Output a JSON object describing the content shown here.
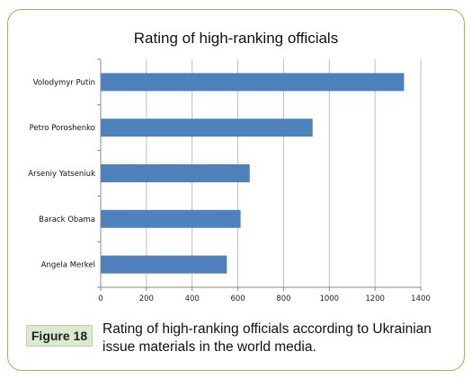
{
  "chart_data": {
    "type": "bar",
    "orientation": "horizontal",
    "title": "Rating of high-ranking officials",
    "categories": [
      "Volodymyr Putin",
      "Petro Poroshenko",
      "Arseniy Yatseniuk",
      "Barack Obama",
      "Angela Merkel"
    ],
    "values": [
      1325,
      925,
      650,
      610,
      550
    ],
    "xlim": [
      0,
      1400
    ],
    "xticks": [
      "0",
      "200",
      "400",
      "600",
      "800",
      "1000",
      "1200",
      "1400"
    ],
    "grid": true,
    "legend": "none",
    "bar_color": "#4f81bd"
  },
  "figure": {
    "label": "Figure 18",
    "caption": "Rating of high-ranking officials according to Ukrainian issue materials in the world media."
  }
}
